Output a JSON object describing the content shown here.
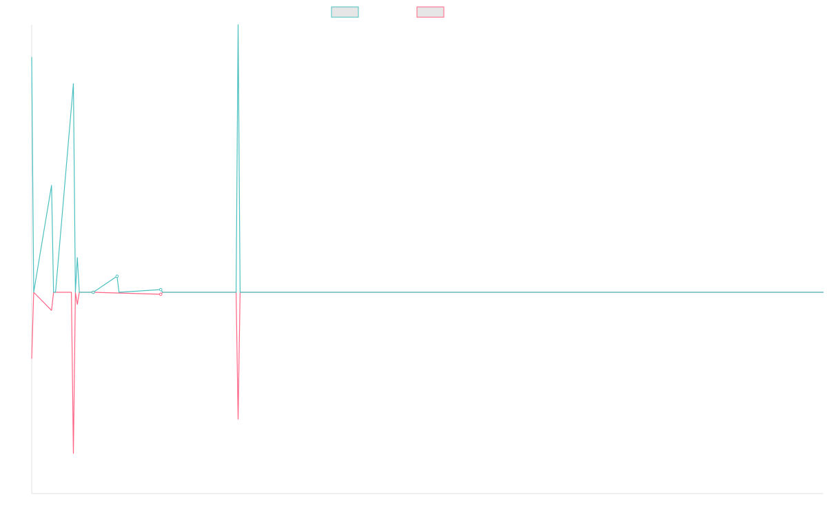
{
  "chart_data": {
    "type": "line",
    "title": "",
    "xlabel": "",
    "ylabel": "",
    "grid": false,
    "legend_position": "top-center",
    "x_count": 400,
    "ylim": [
      -1.0,
      1.0
    ],
    "colors": {
      "teal": "#4bc0c0",
      "pink": "#ff6384",
      "axis": "#e2e2e2",
      "legend_fill": "#e6e6e6"
    },
    "series": [
      {
        "name": "",
        "color": "#4bc0c0",
        "points": [
          [
            0,
            0.88
          ],
          [
            1,
            0
          ],
          [
            10,
            0.4
          ],
          [
            11,
            0
          ],
          [
            12,
            0
          ],
          [
            21,
            0.78
          ],
          [
            22,
            0
          ],
          [
            23,
            0.13
          ],
          [
            24,
            0
          ],
          [
            31,
            0
          ],
          [
            43,
            0.06
          ],
          [
            44,
            0
          ],
          [
            65,
            0.01
          ],
          [
            66,
            0
          ],
          [
            103,
            0
          ],
          [
            104,
            1.0
          ],
          [
            105,
            0
          ],
          [
            399,
            0
          ]
        ]
      },
      {
        "name": "",
        "color": "#ff6384",
        "points": [
          [
            0,
            -0.33
          ],
          [
            1,
            0
          ],
          [
            10,
            -0.09
          ],
          [
            11,
            0
          ],
          [
            20,
            0
          ],
          [
            21,
            -0.8
          ],
          [
            22,
            0
          ],
          [
            23,
            -0.06
          ],
          [
            24,
            0
          ],
          [
            31,
            0
          ],
          [
            65,
            -0.01
          ],
          [
            66,
            0
          ],
          [
            103,
            0
          ],
          [
            104,
            -0.63
          ],
          [
            105,
            0
          ],
          [
            399,
            0
          ]
        ]
      }
    ]
  }
}
